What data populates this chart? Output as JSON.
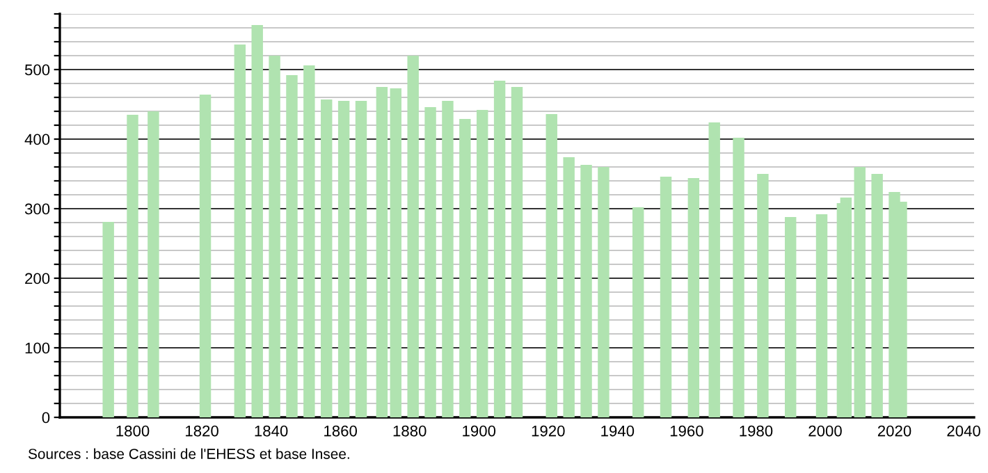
{
  "chart_data": {
    "type": "bar",
    "x": [
      1793,
      1800,
      1806,
      1821,
      1831,
      1836,
      1841,
      1846,
      1851,
      1856,
      1861,
      1866,
      1872,
      1876,
      1881,
      1886,
      1891,
      1896,
      1901,
      1906,
      1911,
      1921,
      1926,
      1931,
      1936,
      1946,
      1954,
      1962,
      1968,
      1975,
      1982,
      1990,
      1999,
      2005,
      2006,
      2010,
      2015,
      2020,
      2022
    ],
    "values": [
      281,
      435,
      440,
      464,
      536,
      564,
      520,
      492,
      506,
      457,
      455,
      455,
      475,
      473,
      520,
      446,
      455,
      429,
      442,
      484,
      475,
      436,
      374,
      363,
      360,
      302,
      346,
      344,
      424,
      402,
      350,
      288,
      292,
      308,
      316,
      360,
      350,
      324,
      310
    ],
    "color": "#b0e3b0",
    "xlim": [
      1779,
      2043
    ],
    "xticks": [
      1800,
      1820,
      1840,
      1860,
      1880,
      1900,
      1920,
      1940,
      1960,
      1980,
      2000,
      2020,
      2040
    ],
    "ylim": [
      0,
      580
    ],
    "yticks": [
      0,
      {
        "value": 20,
        "label": null
      },
      {
        "value": 40,
        "label": null
      },
      {
        "value": 60,
        "label": null
      },
      {
        "value": 80,
        "label": null
      },
      100,
      {
        "value": 120,
        "label": null
      },
      {
        "value": 140,
        "label": null
      },
      {
        "value": 160,
        "label": null
      },
      {
        "value": 180,
        "label": null
      },
      200,
      {
        "value": 220,
        "label": null
      },
      {
        "value": 240,
        "label": null
      },
      {
        "value": 260,
        "label": null
      },
      {
        "value": 280,
        "label": null
      },
      300,
      {
        "value": 320,
        "label": null
      },
      {
        "value": 340,
        "label": null
      },
      {
        "value": 360,
        "label": null
      },
      {
        "value": 380,
        "label": null
      },
      400,
      {
        "value": 420,
        "label": null
      },
      {
        "value": 440,
        "label": null
      },
      {
        "value": 460,
        "label": null
      },
      {
        "value": 480,
        "label": null
      },
      500,
      {
        "value": 520,
        "label": null
      },
      {
        "value": 540,
        "label": null
      },
      {
        "value": 560,
        "label": null
      },
      {
        "value": 580,
        "label": null
      }
    ],
    "grid": "y",
    "annotations": [
      "Sources : base Cassini de l'EHESS et base Insee."
    ]
  }
}
